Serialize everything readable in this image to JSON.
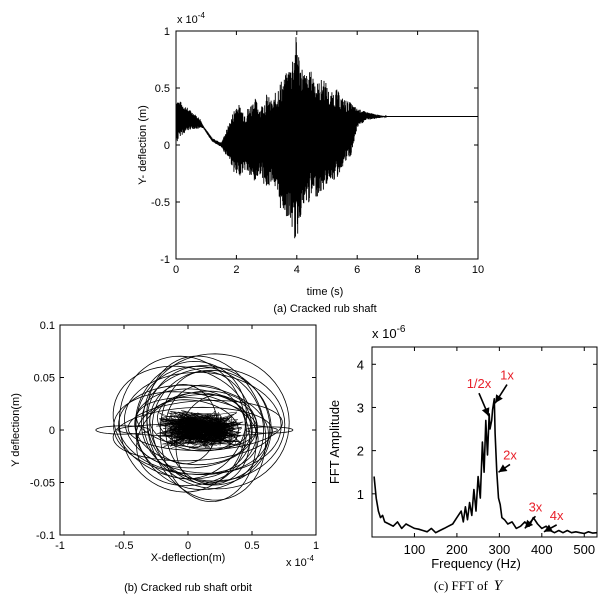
{
  "accent_color": "#e8202a",
  "chart_data": [
    {
      "type": "line",
      "caption": "(a) Cracked rub shaft",
      "xlabel": "time (s)",
      "ylabel": "Y- deflection (m)",
      "scale_label": "x 10",
      "scale_exp": "-4",
      "xlim": [
        0,
        10
      ],
      "ylim": [
        -1,
        1
      ],
      "xticks": [
        0,
        2,
        4,
        6,
        8,
        10
      ],
      "yticks": [
        -1,
        -0.5,
        0,
        0.5,
        1
      ],
      "grid": false,
      "envelope": {
        "t": [
          0,
          0.15,
          0.5,
          0.8,
          0.9,
          1.2,
          1.5,
          1.8,
          2.0,
          2.3,
          2.6,
          2.8,
          3.0,
          3.2,
          3.4,
          3.6,
          3.8,
          3.9,
          4.0,
          4.1,
          4.3,
          4.5,
          4.7,
          4.9,
          5.1,
          5.3,
          5.5,
          5.8,
          6.0,
          6.3,
          6.6,
          6.8,
          7.0,
          7.2,
          10
        ],
        "upper": [
          0.42,
          0.38,
          0.3,
          0.23,
          0.17,
          0.06,
          0.02,
          0.22,
          0.38,
          0.3,
          0.42,
          0.34,
          0.45,
          0.38,
          0.56,
          0.6,
          0.74,
          0.86,
          0.99,
          0.75,
          0.62,
          0.66,
          0.55,
          0.6,
          0.45,
          0.5,
          0.42,
          0.37,
          0.32,
          0.29,
          0.27,
          0.26,
          0.25,
          0.25,
          0.25
        ],
        "lower": [
          0.0,
          0.08,
          0.14,
          0.14,
          0.15,
          0.03,
          -0.02,
          -0.15,
          -0.3,
          -0.22,
          -0.35,
          -0.25,
          -0.42,
          -0.3,
          -0.55,
          -0.6,
          -0.7,
          -0.82,
          -0.88,
          -0.65,
          -0.55,
          -0.48,
          -0.45,
          -0.4,
          -0.3,
          -0.32,
          -0.2,
          -0.1,
          0.15,
          0.22,
          0.23,
          0.24,
          0.25,
          0.25,
          0.25
        ]
      }
    },
    {
      "type": "line",
      "caption": "(b) Cracked rub shaft orbit",
      "xlabel": "X-deflection(m)",
      "ylabel": "Y deflection(m)",
      "scale_label": "x 10",
      "scale_exp": "-4",
      "xlim": [
        -1,
        1
      ],
      "ylim": [
        -0.1,
        0.1
      ],
      "xticks": [
        -1,
        -0.5,
        0,
        0.5,
        1
      ],
      "yticks": [
        -0.1,
        -0.05,
        0,
        0.05,
        0.1
      ],
      "grid": false
    },
    {
      "type": "line",
      "caption": "(c) FFT of",
      "caption_var": "Y",
      "xlabel": "Frequency (Hz)",
      "ylabel": "FFT Amplitude",
      "scale_label": "x 10",
      "scale_exp": "-6",
      "xlim": [
        0,
        530
      ],
      "ylim": [
        0,
        4.4
      ],
      "xticks": [
        100,
        200,
        300,
        400,
        500
      ],
      "yticks": [
        1,
        2,
        3,
        4
      ],
      "grid": false,
      "points": {
        "x": [
          5,
          10,
          15,
          20,
          25,
          30,
          40,
          50,
          60,
          70,
          80,
          90,
          100,
          110,
          120,
          130,
          140,
          150,
          160,
          170,
          180,
          190,
          200,
          210,
          215,
          220,
          225,
          230,
          235,
          240,
          245,
          250,
          255,
          260,
          264,
          268,
          272,
          276,
          278,
          282,
          284,
          288,
          290,
          294,
          298,
          302,
          306,
          312,
          320,
          330,
          340,
          350,
          360,
          370,
          380,
          390,
          400,
          410,
          420,
          430,
          440,
          450,
          460,
          470,
          480,
          490,
          500,
          510,
          520,
          530
        ],
        "y": [
          1.4,
          0.9,
          0.6,
          0.45,
          0.5,
          0.35,
          0.3,
          0.25,
          0.35,
          0.2,
          0.3,
          0.25,
          0.2,
          0.18,
          0.15,
          0.12,
          0.2,
          0.1,
          0.15,
          0.2,
          0.25,
          0.3,
          0.45,
          0.6,
          0.35,
          0.7,
          0.4,
          0.8,
          0.5,
          1.1,
          0.6,
          1.4,
          0.9,
          2.2,
          1.5,
          2.7,
          1.9,
          2.85,
          2.5,
          2.7,
          2.95,
          3.2,
          2.4,
          1.5,
          0.9,
          0.75,
          0.45,
          0.4,
          0.3,
          0.35,
          0.2,
          0.25,
          0.35,
          0.25,
          0.45,
          0.3,
          0.2,
          0.25,
          0.15,
          0.1,
          0.15,
          0.1,
          0.15,
          0.1,
          0.12,
          0.1,
          0.08,
          0.12,
          0.09,
          0.1
        ]
      },
      "annotations": [
        {
          "text": "1/2x",
          "at": [
            275,
            2.8
          ],
          "label_at": [
            252,
            3.4
          ]
        },
        {
          "text": "1x",
          "at": [
            290,
            3.1
          ],
          "label_at": [
            318,
            3.6
          ]
        },
        {
          "text": "2x",
          "at": [
            298,
            1.5
          ],
          "label_at": [
            325,
            1.75
          ]
        },
        {
          "text": "3x",
          "at": [
            360,
            0.2
          ],
          "label_at": [
            385,
            0.55
          ]
        },
        {
          "text": "4x",
          "at": [
            405,
            0.12
          ],
          "label_at": [
            435,
            0.35
          ]
        }
      ]
    }
  ]
}
